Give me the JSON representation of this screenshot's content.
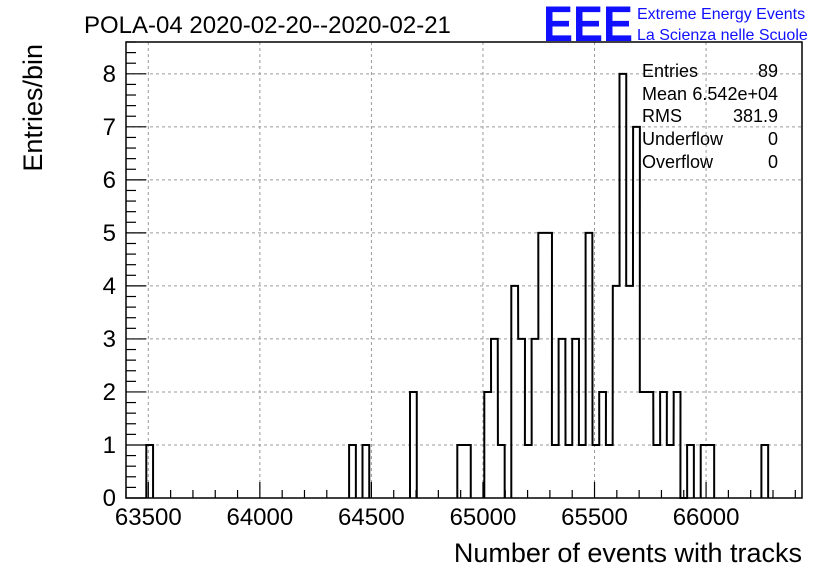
{
  "title": "POLA-04 2020-02-20--2020-02-21",
  "logo": {
    "mark": "EEE",
    "line1": "Extreme Energy Events",
    "line2": "La Scienza nelle Scuole",
    "color": "#1010ff"
  },
  "stats": [
    {
      "label": "Entries",
      "value": "89"
    },
    {
      "label": "Mean",
      "value": "6.542e+04"
    },
    {
      "label": "RMS",
      "value": "381.9"
    },
    {
      "label": "Underflow",
      "value": "0"
    },
    {
      "label": "Overflow",
      "value": "0"
    }
  ],
  "chart_data": {
    "type": "bar",
    "style": "step-histogram",
    "title": "POLA-04 2020-02-20--2020-02-21",
    "xlabel": "Number of events with tracks",
    "ylabel": "Entries/bin",
    "xlim": [
      63400,
      66430
    ],
    "ylim": [
      0,
      8.6
    ],
    "xticks": [
      63500,
      64000,
      64500,
      65000,
      65500,
      66000
    ],
    "yticks": [
      0,
      1,
      2,
      3,
      4,
      5,
      6,
      7,
      8
    ],
    "grid": true,
    "line_color": "#000000",
    "bin_width": 30.3,
    "bins": [
      {
        "x": 63491,
        "count": 1
      },
      {
        "x": 64400,
        "count": 1
      },
      {
        "x": 64460,
        "count": 1
      },
      {
        "x": 64673,
        "count": 2
      },
      {
        "x": 64885,
        "count": 1
      },
      {
        "x": 64915,
        "count": 1
      },
      {
        "x": 65006,
        "count": 2
      },
      {
        "x": 65036,
        "count": 3
      },
      {
        "x": 65067,
        "count": 1
      },
      {
        "x": 65127,
        "count": 4
      },
      {
        "x": 65158,
        "count": 3
      },
      {
        "x": 65188,
        "count": 1
      },
      {
        "x": 65218,
        "count": 3
      },
      {
        "x": 65248,
        "count": 5
      },
      {
        "x": 65279,
        "count": 5
      },
      {
        "x": 65309,
        "count": 1
      },
      {
        "x": 65339,
        "count": 3
      },
      {
        "x": 65370,
        "count": 1
      },
      {
        "x": 65400,
        "count": 3
      },
      {
        "x": 65430,
        "count": 1
      },
      {
        "x": 65460,
        "count": 5
      },
      {
        "x": 65491,
        "count": 1
      },
      {
        "x": 65521,
        "count": 2
      },
      {
        "x": 65551,
        "count": 1
      },
      {
        "x": 65582,
        "count": 4
      },
      {
        "x": 65612,
        "count": 8
      },
      {
        "x": 65642,
        "count": 4
      },
      {
        "x": 65673,
        "count": 7
      },
      {
        "x": 65703,
        "count": 2
      },
      {
        "x": 65733,
        "count": 2
      },
      {
        "x": 65764,
        "count": 1
      },
      {
        "x": 65794,
        "count": 2
      },
      {
        "x": 65824,
        "count": 1
      },
      {
        "x": 65855,
        "count": 2
      },
      {
        "x": 65885,
        "count": 0
      },
      {
        "x": 65915,
        "count": 1
      },
      {
        "x": 65976,
        "count": 1
      },
      {
        "x": 66006,
        "count": 1
      },
      {
        "x": 66248,
        "count": 1
      }
    ]
  }
}
